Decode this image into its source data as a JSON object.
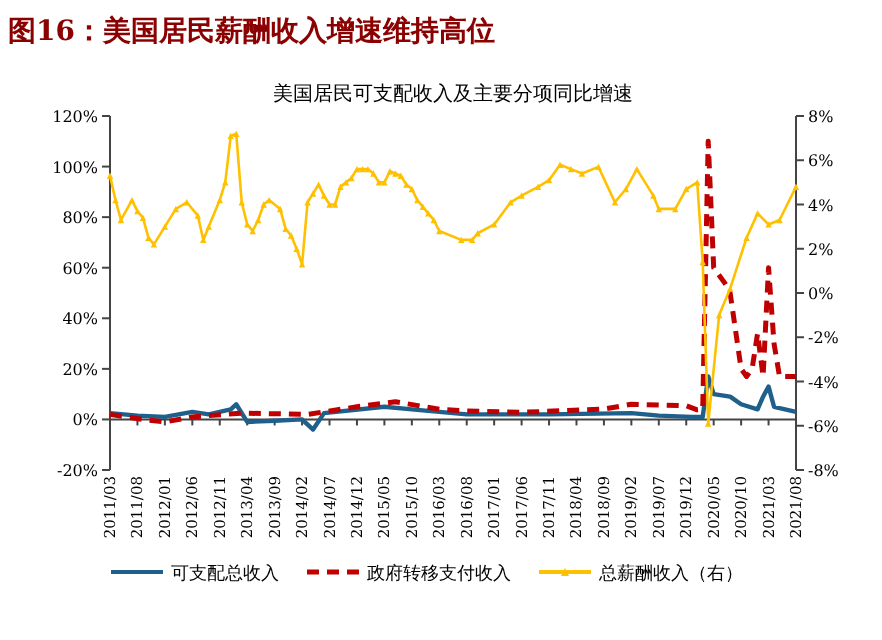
{
  "chart_data": {
    "type": "line",
    "title": "图16：美国居民薪酬收入增速维持高位",
    "subtitle": "美国居民可支配收入及主要分项同比增速",
    "xlim": [
      "2011-03",
      "2021-08"
    ],
    "xticks": [
      {
        "value": "2011-03",
        "label": "2011/03"
      },
      {
        "value": "2011-08",
        "label": "2011/08"
      },
      {
        "value": "2012-01",
        "label": "2012/01"
      },
      {
        "value": "2012-06",
        "label": "2012/06"
      },
      {
        "value": "2012-11",
        "label": "2012/11"
      },
      {
        "value": "2013-04",
        "label": "2013/04"
      },
      {
        "value": "2013-09",
        "label": "2013/09"
      },
      {
        "value": "2014-02",
        "label": "2014/02"
      },
      {
        "value": "2014-07",
        "label": "2014/07"
      },
      {
        "value": "2014-12",
        "label": "2014/12"
      },
      {
        "value": "2015-05",
        "label": "2015/05"
      },
      {
        "value": "2015-10",
        "label": "2015/10"
      },
      {
        "value": "2016-03",
        "label": "2016/03"
      },
      {
        "value": "2016-08",
        "label": "2016/08"
      },
      {
        "value": "2017-01",
        "label": "2017/01"
      },
      {
        "value": "2017-06",
        "label": "2017/06"
      },
      {
        "value": "2017-11",
        "label": "2017/11"
      },
      {
        "value": "2018-04",
        "label": "2018/04"
      },
      {
        "value": "2018-09",
        "label": "2018/09"
      },
      {
        "value": "2019-02",
        "label": "2019/02"
      },
      {
        "value": "2019-07",
        "label": "2019/07"
      },
      {
        "value": "2019-12",
        "label": "2019/12"
      },
      {
        "value": "2020-05",
        "label": "2020/05"
      },
      {
        "value": "2020-10",
        "label": "2020/10"
      },
      {
        "value": "2021-03",
        "label": "2021/03"
      },
      {
        "value": "2021-08",
        "label": "2021/08"
      }
    ],
    "ylim": [
      -20,
      120
    ],
    "yticks": [
      {
        "value": -20,
        "label": "-20%"
      },
      {
        "value": 0,
        "label": "0%"
      },
      {
        "value": 20,
        "label": "20%"
      },
      {
        "value": 40,
        "label": "40%"
      },
      {
        "value": 60,
        "label": "60%"
      },
      {
        "value": 80,
        "label": "80%"
      },
      {
        "value": 100,
        "label": "100%"
      },
      {
        "value": 120,
        "label": "120%"
      }
    ],
    "y2lim": [
      -8,
      8
    ],
    "y2ticks": [
      {
        "value": -8,
        "label": "-8%"
      },
      {
        "value": -6,
        "label": "-6%"
      },
      {
        "value": -4,
        "label": "-4%"
      },
      {
        "value": -2,
        "label": "-2%"
      },
      {
        "value": 0,
        "label": "0%"
      },
      {
        "value": 2,
        "label": "2%"
      },
      {
        "value": 4,
        "label": "4%"
      },
      {
        "value": 6,
        "label": "6%"
      },
      {
        "value": 8,
        "label": "8%"
      }
    ],
    "legend": "bottom",
    "series": [
      {
        "name": "可支配总收入",
        "color": "#1f5f8b",
        "line_style": "solid",
        "x": [
          "2011-03",
          "2011-08",
          "2012-01",
          "2012-06",
          "2012-09",
          "2013-01",
          "2013-02",
          "2013-04",
          "2013-09",
          "2014-02",
          "2014-04",
          "2014-06",
          "2015-05",
          "2015-10",
          "2016-08",
          "2017-11",
          "2019-02",
          "2019-07",
          "2020-01",
          "2020-03",
          "2020-04",
          "2020-05",
          "2020-08",
          "2020-10",
          "2021-01",
          "2021-02",
          "2021-03",
          "2021-04",
          "2021-08"
        ],
        "values": [
          2.5,
          1.5,
          1,
          3,
          2,
          4,
          6,
          -1,
          -0.5,
          0,
          -4,
          2.5,
          5,
          4,
          2,
          2,
          2.5,
          1.5,
          1,
          1,
          17,
          10,
          9,
          6,
          4,
          9,
          13,
          5,
          3
        ]
      },
      {
        "name": "政府转移支付收入",
        "color": "#c00000",
        "line_style": "dashed",
        "x": [
          "2011-03",
          "2011-09",
          "2012-01",
          "2012-06",
          "2013-03",
          "2014-03",
          "2014-12",
          "2015-07",
          "2016-03",
          "2016-08",
          "2017-06",
          "2018-09",
          "2019-02",
          "2019-12",
          "2020-02",
          "2020-03",
          "2020-04",
          "2020-05",
          "2020-07",
          "2020-08",
          "2020-10",
          "2020-11",
          "2020-12",
          "2021-01",
          "2021-02",
          "2021-03",
          "2021-04",
          "2021-05",
          "2021-08"
        ],
        "values": [
          2,
          0,
          -1,
          1,
          2.5,
          2,
          5,
          7,
          4,
          3.3,
          2.8,
          4.1,
          6,
          5.4,
          3.8,
          4,
          110,
          60,
          54,
          50,
          20,
          17,
          20,
          34,
          17,
          60,
          30,
          17,
          17
        ]
      },
      {
        "name": "总薪酬收入（右）",
        "color": "#ffc000",
        "axis": "y2",
        "line_style": "solid",
        "marker": "triangle",
        "x": [
          "2011-03",
          "2011-04",
          "2011-05",
          "2011-07",
          "2011-08",
          "2011-09",
          "2011-10",
          "2011-11",
          "2012-01",
          "2012-03",
          "2012-05",
          "2012-07",
          "2012-08",
          "2012-09",
          "2012-11",
          "2012-12",
          "2013-01",
          "2013-02",
          "2013-03",
          "2013-04",
          "2013-05",
          "2013-06",
          "2013-07",
          "2013-08",
          "2013-10",
          "2013-11",
          "2013-12",
          "2014-01",
          "2014-02",
          "2014-03",
          "2014-04",
          "2014-05",
          "2014-06",
          "2014-07",
          "2014-08",
          "2014-09",
          "2014-10",
          "2014-11",
          "2014-12",
          "2015-01",
          "2015-02",
          "2015-03",
          "2015-04",
          "2015-05",
          "2015-06",
          "2015-07",
          "2015-08",
          "2015-09",
          "2015-10",
          "2015-11",
          "2015-12",
          "2016-01",
          "2016-02",
          "2016-03",
          "2016-07",
          "2016-09",
          "2016-10",
          "2017-01",
          "2017-04",
          "2017-06",
          "2017-09",
          "2017-11",
          "2018-01",
          "2018-03",
          "2018-05",
          "2018-08",
          "2018-11",
          "2019-01",
          "2019-03",
          "2019-06",
          "2019-07",
          "2019-10",
          "2019-12",
          "2020-02",
          "2020-03",
          "2020-04",
          "2020-06",
          "2020-08",
          "2020-11",
          "2021-01",
          "2021-03",
          "2021-05",
          "2021-08"
        ],
        "values": [
          5.3,
          4.2,
          3.3,
          4.2,
          3.7,
          3.4,
          2.5,
          2.2,
          3.0,
          3.8,
          4.1,
          3.5,
          2.4,
          3.0,
          4.2,
          5.0,
          7.1,
          7.2,
          4.1,
          3.1,
          2.8,
          3.3,
          4.0,
          4.2,
          3.8,
          2.9,
          2.6,
          2.0,
          1.3,
          4.1,
          4.5,
          4.9,
          4.4,
          4.0,
          4.0,
          4.8,
          5.0,
          5.2,
          5.6,
          5.6,
          5.6,
          5.4,
          5.0,
          5.0,
          5.5,
          5.4,
          5.3,
          4.9,
          4.7,
          4.2,
          3.9,
          3.6,
          3.3,
          2.8,
          2.4,
          2.4,
          2.7,
          3.1,
          4.1,
          4.4,
          4.8,
          5.1,
          5.8,
          5.6,
          5.4,
          5.7,
          4.1,
          4.7,
          5.6,
          4.4,
          3.8,
          3.8,
          4.7,
          5.0,
          1.4,
          -5.9,
          -1.0,
          0.2,
          2.5,
          3.6,
          3.1,
          3.3,
          4.8
        ]
      }
    ]
  }
}
